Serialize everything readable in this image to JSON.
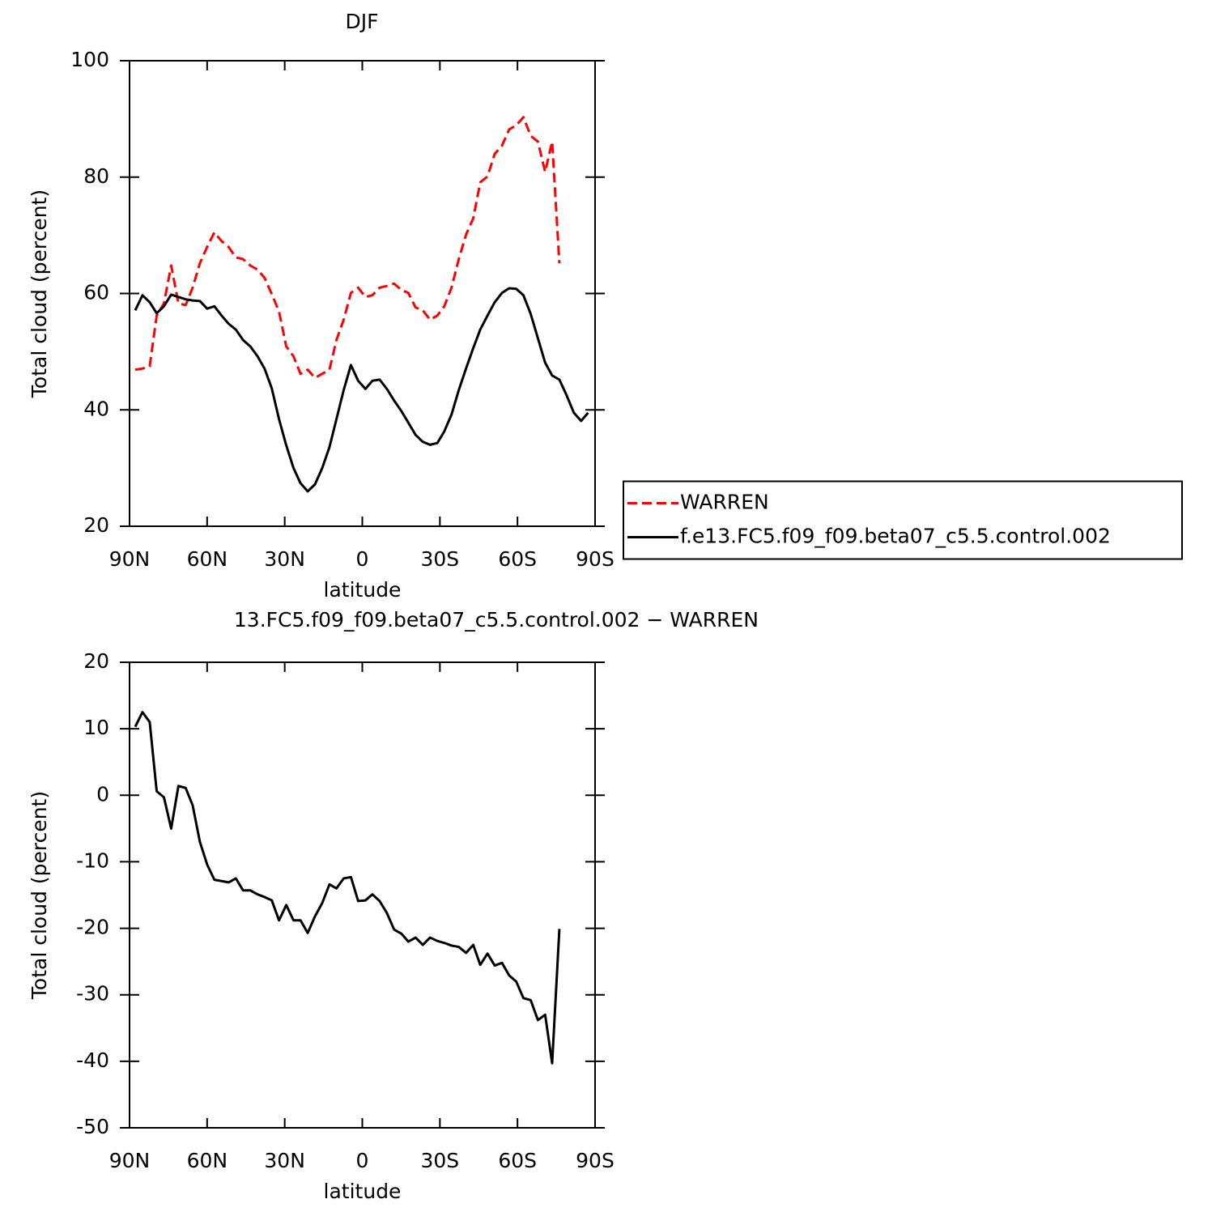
{
  "chart_data": [
    {
      "type": "line",
      "title": "DJF",
      "xlabel": "latitude",
      "ylabel": "Total cloud (percent)",
      "x": [
        87.8,
        85.0,
        82.2,
        79.5,
        76.7,
        73.9,
        71.1,
        68.3,
        65.6,
        62.8,
        60.0,
        57.2,
        54.4,
        51.7,
        48.9,
        46.1,
        43.3,
        40.5,
        37.8,
        35.0,
        32.2,
        29.4,
        26.6,
        23.9,
        21.1,
        18.3,
        15.5,
        12.7,
        10.0,
        7.2,
        4.4,
        1.6,
        -1.2,
        -3.9,
        -6.7,
        -9.5,
        -12.3,
        -15.1,
        -17.8,
        -20.6,
        -23.4,
        -26.2,
        -29.0,
        -31.7,
        -34.5,
        -37.3,
        -40.1,
        -42.9,
        -45.6,
        -48.4,
        -51.2,
        -54.0,
        -56.8,
        -59.5,
        -62.3,
        -65.1,
        -67.9,
        -70.7,
        -73.4,
        -76.2,
        -79.0,
        -81.8,
        -84.6,
        -87.3
      ],
      "series": [
        {
          "name": "WARREN",
          "color": "#ff0000",
          "dashed": true,
          "values": [
            46.9,
            47.1,
            47.5,
            56.2,
            58.3,
            64.8,
            58.3,
            58.0,
            61.0,
            65.2,
            68.0,
            70.5,
            69.0,
            68.0,
            66.2,
            65.9,
            64.8,
            64.1,
            62.7,
            59.9,
            56.9,
            50.9,
            49.2,
            46.2,
            46.9,
            45.5,
            46.2,
            46.9,
            52.0,
            55.5,
            60.1,
            61.0,
            59.4,
            59.7,
            61.0,
            61.3,
            61.7,
            60.6,
            60.1,
            57.6,
            57.1,
            55.5,
            56.2,
            57.8,
            61.0,
            65.9,
            70.1,
            72.9,
            79.1,
            80.1,
            84.0,
            85.4,
            88.2,
            88.9,
            90.3,
            87.1,
            86.1,
            80.9,
            86.1,
            65.2,
            null,
            null,
            null,
            null
          ]
        },
        {
          "name": "f.e13.FC5.f09_f09.beta07_c5.5.control.002",
          "color": "#000000",
          "dashed": false,
          "values": [
            57.1,
            59.7,
            58.5,
            56.6,
            57.8,
            59.8,
            59.4,
            59.0,
            58.8,
            58.7,
            57.4,
            57.8,
            56.2,
            54.8,
            53.8,
            52.0,
            50.9,
            49.2,
            47.1,
            43.7,
            38.4,
            33.9,
            30.0,
            27.4,
            26.0,
            27.2,
            30.0,
            33.6,
            38.4,
            43.4,
            47.7,
            45.0,
            43.6,
            45.0,
            45.2,
            43.6,
            41.6,
            39.8,
            37.8,
            35.7,
            34.5,
            34.0,
            34.3,
            36.3,
            39.2,
            43.4,
            47.1,
            50.6,
            53.8,
            56.2,
            58.5,
            60.1,
            60.9,
            60.8,
            59.7,
            56.5,
            52.3,
            48.1,
            45.9,
            45.2,
            42.5,
            39.5,
            38.1,
            39.5
          ]
        }
      ],
      "xlim": [
        90,
        -90
      ],
      "xticks": [
        {
          "value": 90,
          "label": "90N"
        },
        {
          "value": 60,
          "label": "60N"
        },
        {
          "value": 30,
          "label": "30N"
        },
        0,
        {
          "value": -30,
          "label": "30S"
        },
        {
          "value": -60,
          "label": "60S"
        },
        {
          "value": -90,
          "label": "90S"
        }
      ],
      "ylim": [
        20,
        100
      ],
      "yticks": [
        20,
        40,
        60,
        80,
        100
      ],
      "grid": false,
      "legend": "right"
    },
    {
      "type": "line",
      "title": "13.FC5.f09_f09.beta07_c5.5.control.002 − WARREN",
      "xlabel": "latitude",
      "ylabel": "Total cloud (percent)",
      "x": [
        87.8,
        85.0,
        82.2,
        79.5,
        76.7,
        73.9,
        71.1,
        68.3,
        65.6,
        62.8,
        60.0,
        57.2,
        54.4,
        51.7,
        48.9,
        46.1,
        43.3,
        40.5,
        37.8,
        35.0,
        32.2,
        29.4,
        26.6,
        23.9,
        21.1,
        18.3,
        15.5,
        12.7,
        10.0,
        7.2,
        4.4,
        1.6,
        -1.2,
        -3.9,
        -6.7,
        -9.5,
        -12.3,
        -15.1,
        -17.8,
        -20.6,
        -23.4,
        -26.2,
        -29.0,
        -31.7,
        -34.5,
        -37.3,
        -40.1,
        -42.9,
        -45.6,
        -48.4,
        -51.2,
        -54.0,
        -56.8,
        -59.5,
        -62.3,
        -65.1,
        -67.9,
        -70.7,
        -73.4,
        -76.2,
        -79.0,
        -81.8,
        -84.6,
        -87.3
      ],
      "series": [
        {
          "color": "#000000",
          "dashed": false,
          "values": [
            10.3,
            12.5,
            11.0,
            0.6,
            -0.3,
            -5.0,
            1.4,
            1.1,
            -1.5,
            -7.0,
            -10.4,
            -12.7,
            -12.9,
            -13.1,
            -12.5,
            -14.3,
            -14.3,
            -14.9,
            -15.3,
            -15.8,
            -18.8,
            -16.5,
            -18.8,
            -18.8,
            -20.7,
            -18.2,
            -16.2,
            -13.4,
            -14.0,
            -12.5,
            -12.3,
            -15.9,
            -15.8,
            -14.9,
            -15.9,
            -17.7,
            -20.2,
            -20.8,
            -22.0,
            -21.4,
            -22.5,
            -21.4,
            -21.9,
            -22.2,
            -22.6,
            -22.8,
            -23.7,
            -22.5,
            -25.5,
            -23.8,
            -25.6,
            -25.2,
            -27.1,
            -28.0,
            -30.5,
            -30.8,
            -33.8,
            -33.0,
            -40.3,
            -20.1,
            null,
            null,
            null,
            null
          ]
        }
      ],
      "xlim": [
        90,
        -90
      ],
      "xticks": [
        {
          "value": 90,
          "label": "90N"
        },
        {
          "value": 60,
          "label": "60N"
        },
        {
          "value": 30,
          "label": "30N"
        },
        0,
        {
          "value": -30,
          "label": "30S"
        },
        {
          "value": -60,
          "label": "60S"
        },
        {
          "value": -90,
          "label": "90S"
        }
      ],
      "ylim": [
        -50,
        20
      ],
      "yticks": [
        -50,
        -40,
        -30,
        -20,
        -10,
        0,
        10,
        20
      ],
      "grid": false
    }
  ]
}
